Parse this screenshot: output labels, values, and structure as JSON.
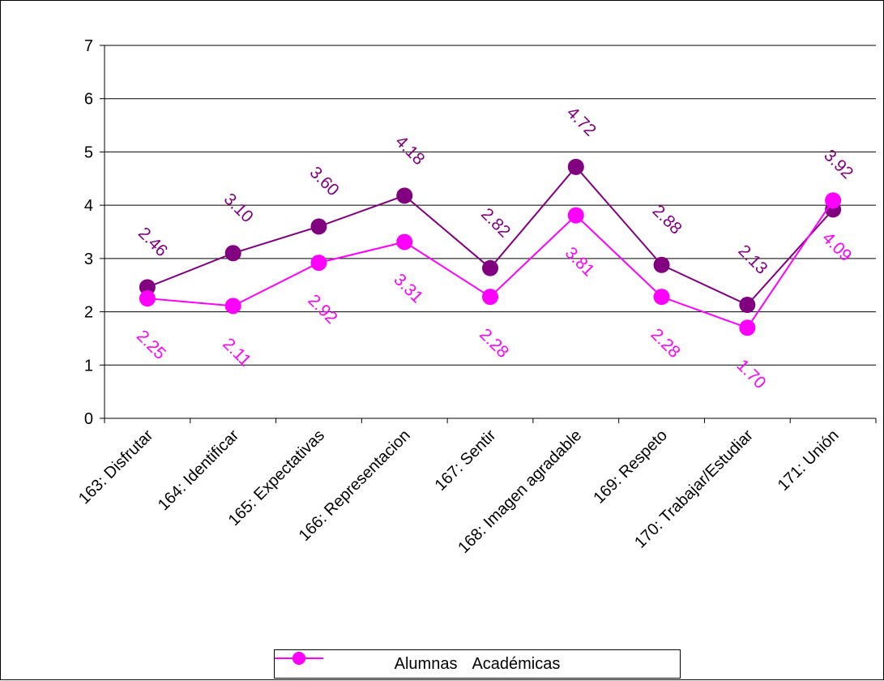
{
  "chart_data": {
    "type": "line",
    "title": "",
    "xlabel": "",
    "ylabel": "",
    "ylim": [
      0,
      7
    ],
    "yticks": [
      0,
      1,
      2,
      3,
      4,
      5,
      6,
      7
    ],
    "grid": true,
    "legend_position": "bottom",
    "categories": [
      "163: Disfrutar",
      "164: Identificar",
      "165: Expectativas",
      "166: Representacion",
      "167: Sentir",
      "168: Imagen agradable",
      "169: Respeto",
      "170: Trabajar/Estudiar",
      "171: Unión"
    ],
    "series": [
      {
        "name": "Alumnas",
        "color": "#800080",
        "values": [
          2.46,
          3.1,
          3.6,
          4.18,
          2.82,
          4.72,
          2.88,
          2.13,
          3.92
        ],
        "labels": [
          "2.46",
          "3.10",
          "3.60",
          "4.18",
          "2.82",
          "4.72",
          "2.88",
          "2.13",
          "3.92"
        ]
      },
      {
        "name": "Académicas",
        "color": "#ff00ff",
        "values": [
          2.25,
          2.11,
          2.92,
          3.31,
          2.28,
          3.81,
          2.28,
          1.7,
          4.09
        ],
        "labels": [
          "2.25",
          "2.11",
          "2.92",
          "3.31",
          "2.28",
          "3.81",
          "2.28",
          "1.70",
          "4.09"
        ]
      }
    ]
  }
}
